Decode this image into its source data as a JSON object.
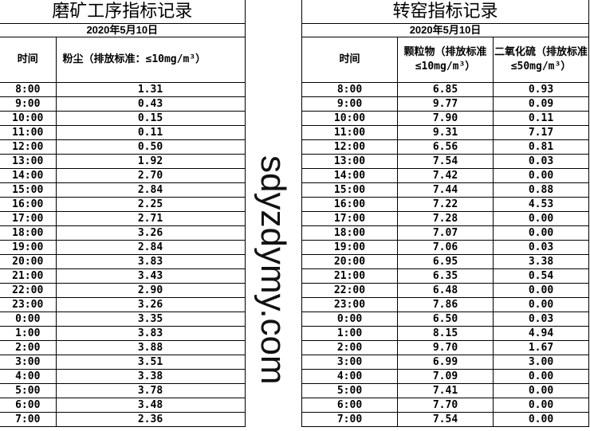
{
  "left": {
    "title": "磨矿工序指标记录",
    "date": "2020年5月10日",
    "headers": [
      "时间",
      "粉尘（排放标准：≤10mg/m³）"
    ],
    "rows": [
      [
        "8:00",
        "1.31"
      ],
      [
        "9:00",
        "0.43"
      ],
      [
        "10:00",
        "0.15"
      ],
      [
        "11:00",
        "0.11"
      ],
      [
        "12:00",
        "0.50"
      ],
      [
        "13:00",
        "1.92"
      ],
      [
        "14:00",
        "2.70"
      ],
      [
        "15:00",
        "2.84"
      ],
      [
        "16:00",
        "2.25"
      ],
      [
        "17:00",
        "2.71"
      ],
      [
        "18:00",
        "3.26"
      ],
      [
        "19:00",
        "2.84"
      ],
      [
        "20:00",
        "3.83"
      ],
      [
        "21:00",
        "3.43"
      ],
      [
        "22:00",
        "2.90"
      ],
      [
        "23:00",
        "3.26"
      ],
      [
        "0:00",
        "3.35"
      ],
      [
        "1:00",
        "3.83"
      ],
      [
        "2:00",
        "3.88"
      ],
      [
        "3:00",
        "3.51"
      ],
      [
        "4:00",
        "3.38"
      ],
      [
        "5:00",
        "3.78"
      ],
      [
        "6:00",
        "3.48"
      ],
      [
        "7:00",
        "2.36"
      ]
    ]
  },
  "right": {
    "title": "转窑指标记录",
    "date": "2020年5月10日",
    "headers": [
      "时间",
      "颗粒物（排放标准≤10mg/m³）",
      "二氧化硫（排放标准≤50mg/m³）"
    ],
    "rows": [
      [
        "8:00",
        "6.85",
        "0.93"
      ],
      [
        "9:00",
        "9.77",
        "0.09"
      ],
      [
        "10:00",
        "7.90",
        "0.11"
      ],
      [
        "11:00",
        "9.31",
        "7.17"
      ],
      [
        "12:00",
        "6.56",
        "0.81"
      ],
      [
        "13:00",
        "7.54",
        "0.03"
      ],
      [
        "14:00",
        "7.42",
        "0.00"
      ],
      [
        "15:00",
        "7.44",
        "0.88"
      ],
      [
        "16:00",
        "7.22",
        "4.53"
      ],
      [
        "17:00",
        "7.28",
        "0.00"
      ],
      [
        "18:00",
        "7.07",
        "0.00"
      ],
      [
        "19:00",
        "7.06",
        "0.03"
      ],
      [
        "20:00",
        "6.95",
        "3.38"
      ],
      [
        "21:00",
        "6.35",
        "0.54"
      ],
      [
        "22:00",
        "6.48",
        "0.00"
      ],
      [
        "23:00",
        "7.86",
        "0.00"
      ],
      [
        "0:00",
        "6.50",
        "0.03"
      ],
      [
        "1:00",
        "8.15",
        "4.94"
      ],
      [
        "2:00",
        "9.70",
        "1.67"
      ],
      [
        "3:00",
        "6.99",
        "3.00"
      ],
      [
        "4:00",
        "7.09",
        "0.00"
      ],
      [
        "5:00",
        "7.41",
        "0.00"
      ],
      [
        "6:00",
        "7.70",
        "0.00"
      ],
      [
        "7:00",
        "7.54",
        "0.00"
      ]
    ]
  },
  "watermark": "sdyzdymy.com"
}
